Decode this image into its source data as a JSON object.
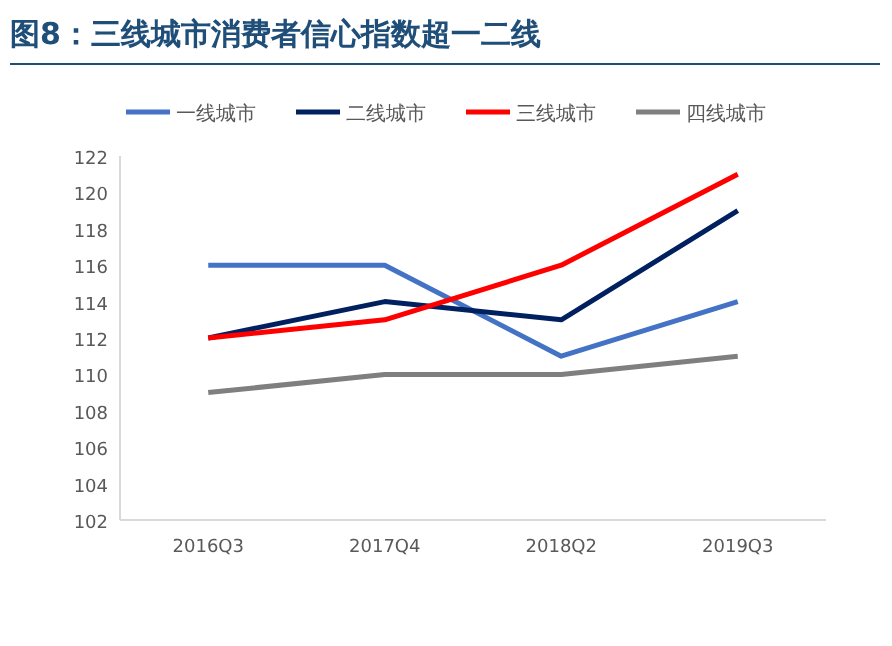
{
  "chart_data": {
    "type": "line",
    "title": "图8：三线城市消费者信心指数超一二线",
    "categories": [
      "2016Q3",
      "2017Q4",
      "2018Q2",
      "2019Q3"
    ],
    "series": [
      {
        "name": "一线城市",
        "color": "#4472c4",
        "values": [
          116,
          116,
          111,
          114
        ]
      },
      {
        "name": "二线城市",
        "color": "#002060",
        "values": [
          112,
          114,
          113,
          119
        ]
      },
      {
        "name": "三线城市",
        "color": "#ff0000",
        "values": [
          112,
          113,
          116,
          121
        ]
      },
      {
        "name": "四线城市",
        "color": "#7f7f7f",
        "values": [
          109,
          110,
          110,
          111
        ]
      }
    ],
    "ylim": [
      102,
      122
    ],
    "yticks": [
      102,
      104,
      106,
      108,
      110,
      112,
      114,
      116,
      118,
      120,
      122
    ],
    "grid": false,
    "legend": "top",
    "marker": "none",
    "line_style": "solid"
  }
}
